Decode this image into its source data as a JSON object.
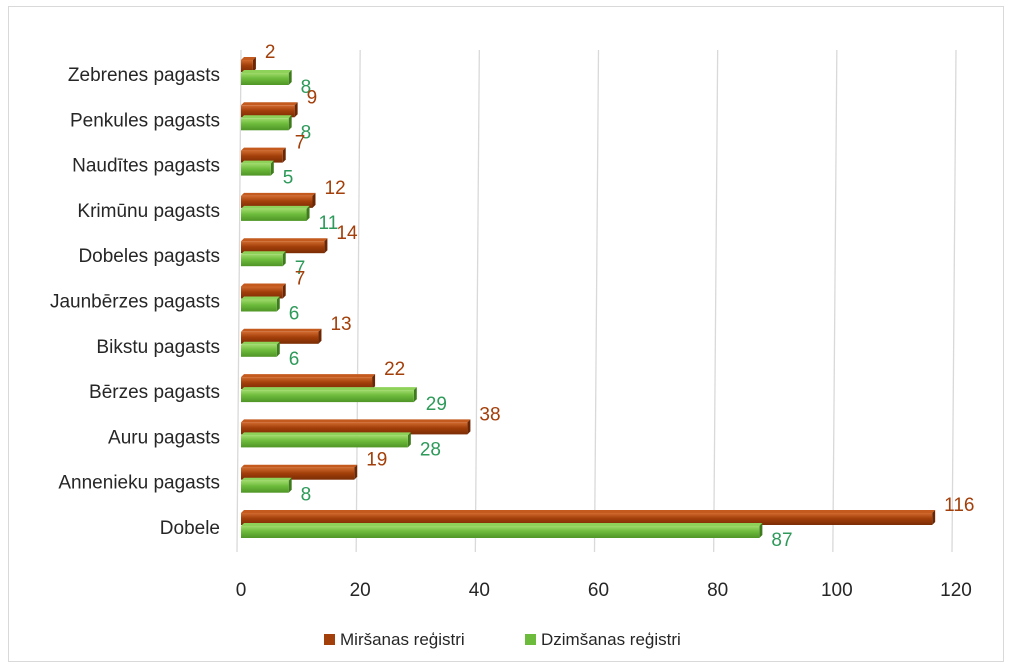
{
  "chart_data": {
    "type": "bar",
    "orientation": "horizontal",
    "categories": [
      "Zebrenes pagasts",
      "Penkules pagasts",
      "Naudītes pagasts",
      "Krimūnu pagasts",
      "Dobeles pagasts",
      "Jaunbērzes pagasts",
      "Bikstu pagasts",
      "Bērzes pagasts",
      "Auru pagasts",
      "Annenieku pagasts",
      "Dobele"
    ],
    "series": [
      {
        "name": "Miršanas reģistri",
        "color": "#a33f0a",
        "label_color": "#a33f0a",
        "values": [
          2,
          9,
          7,
          12,
          14,
          7,
          13,
          22,
          38,
          19,
          116
        ]
      },
      {
        "name": "Dzimšanas reģistri",
        "color": "#6dbb3c",
        "label_color": "#2e9a5a",
        "values": [
          8,
          8,
          5,
          11,
          7,
          6,
          6,
          29,
          28,
          8,
          87
        ]
      }
    ],
    "xlim": [
      0,
      120
    ],
    "xticks": [
      "0",
      "20",
      "40",
      "60",
      "80",
      "100",
      "120"
    ],
    "grid": true,
    "legend_position": "bottom"
  }
}
